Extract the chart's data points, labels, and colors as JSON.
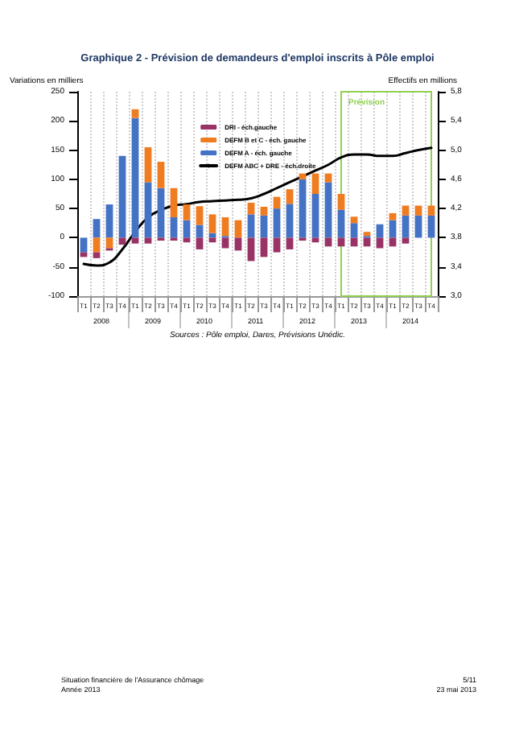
{
  "chart_data": {
    "type": "bar",
    "stacked": true,
    "title": "Graphique 2 - Prévision de demandeurs d'emploi inscrits à Pôle emploi",
    "ylabel": "Variations en milliers",
    "y2label": "Effectifs en millions",
    "categories": [
      "T1",
      "T2",
      "T3",
      "T4",
      "T1",
      "T2",
      "T3",
      "T4",
      "T1",
      "T2",
      "T3",
      "T4",
      "T1",
      "T2",
      "T3",
      "T4",
      "T1",
      "T2",
      "T3",
      "T4",
      "T1",
      "T2",
      "T3",
      "T4",
      "T1",
      "T2",
      "T3",
      "T4"
    ],
    "series": [
      {
        "name": "DEFM A - éch. gauche",
        "color": "#4472c4",
        "values": [
          -25,
          32,
          57,
          140,
          205,
          95,
          85,
          35,
          30,
          22,
          8,
          3,
          0,
          40,
          38,
          50,
          58,
          100,
          75,
          95,
          48,
          25,
          3,
          23,
          30,
          38,
          38,
          38
        ]
      },
      {
        "name": "DEFM B et C - éch. gauche",
        "color": "#f07c21",
        "values": [
          0,
          -25,
          -18,
          0,
          15,
          60,
          45,
          50,
          27,
          32,
          32,
          32,
          30,
          20,
          15,
          20,
          25,
          10,
          35,
          15,
          27,
          11,
          7,
          0,
          12,
          17,
          17,
          17
        ]
      },
      {
        "name": "DRI - éch.gauche",
        "color": "#993366",
        "values": [
          -8,
          -10,
          -4,
          -12,
          -10,
          -10,
          -5,
          -5,
          -8,
          -20,
          -8,
          -18,
          -22,
          -40,
          -33,
          -25,
          -20,
          -5,
          -8,
          -15,
          -15,
          -15,
          -15,
          -18,
          -15,
          -10,
          0,
          0
        ]
      },
      {
        "name": "DEFM ABC + DRE - éch.droite",
        "type": "line",
        "axis": "y2",
        "color": "#000000",
        "values": [
          3.44,
          3.42,
          3.46,
          3.64,
          3.88,
          4.08,
          4.18,
          4.24,
          4.26,
          4.29,
          4.3,
          4.31,
          4.32,
          4.34,
          4.4,
          4.48,
          4.56,
          4.64,
          4.72,
          4.8,
          4.9,
          4.94,
          4.94,
          4.92,
          4.92,
          4.96,
          5.0,
          5.03
        ]
      }
    ],
    "ylim": [
      -100,
      250
    ],
    "yticks": [
      -100,
      -50,
      0,
      50,
      100,
      150,
      200,
      250
    ],
    "y2lim": [
      3.0,
      5.8
    ],
    "y2ticks": [
      {
        "value": 3.0,
        "label": "3,0"
      },
      {
        "value": 3.4,
        "label": "3,4"
      },
      {
        "value": 3.8,
        "label": "3,8"
      },
      {
        "value": 4.2,
        "label": "4,2"
      },
      {
        "value": 4.6,
        "label": "4,6"
      },
      {
        "value": 5.0,
        "label": "5,0"
      },
      {
        "value": 5.4,
        "label": "5,4"
      },
      {
        "value": 5.8,
        "label": "5,8"
      }
    ],
    "grid": "x",
    "legend": "top",
    "marker": "none",
    "line_style": "solid",
    "annotations": [
      "2008",
      "2009",
      "2010",
      "2011",
      "2012",
      "2013",
      "2014",
      "Prévision",
      "Sources : Pôle emploi, Dares, Prévisions Unédic.",
      "Situation financière de l'Assurance chômage",
      "Année 2013",
      "5/11",
      "23 mai 2013"
    ]
  }
}
